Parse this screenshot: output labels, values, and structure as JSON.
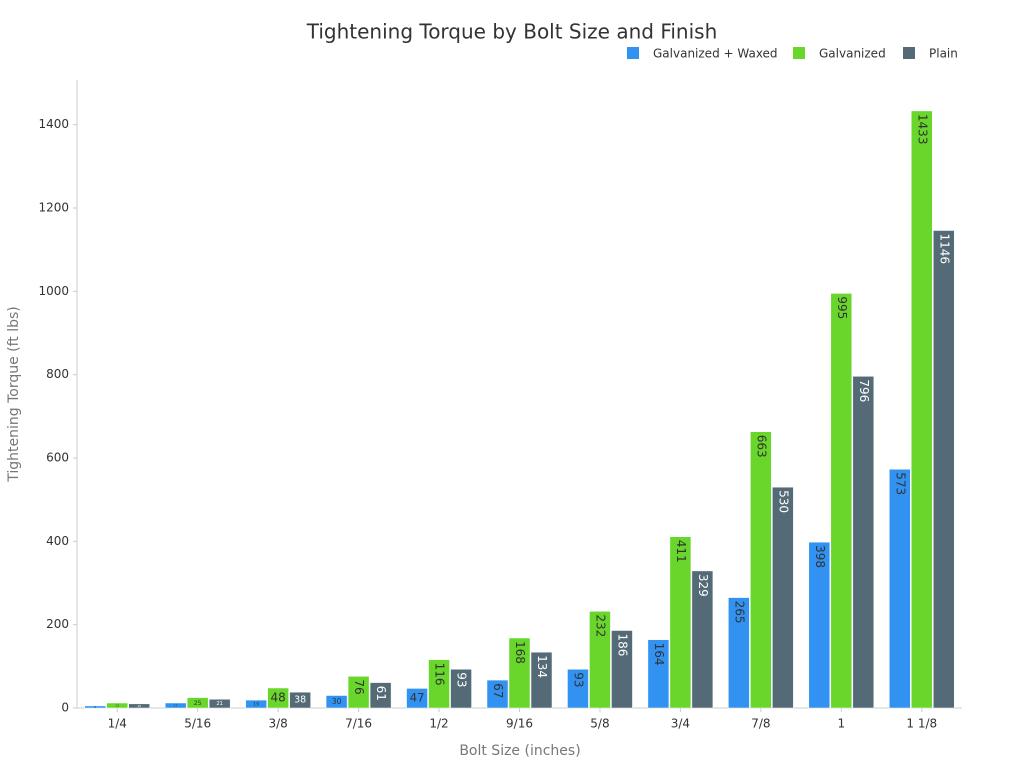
{
  "chart_data": {
    "type": "bar",
    "title": "Tightening Torque by Bolt Size and Finish",
    "x_label": "Bolt Size (inches)",
    "y_label": "Tightening Torque (ft lbs)",
    "categories": [
      "1/4",
      "5/16",
      "3/8",
      "7/16",
      "1/2",
      "9/16",
      "5/8",
      "3/4",
      "7/8",
      "1",
      "1 1/8"
    ],
    "series": [
      {
        "name": "Galvanized + Waxed",
        "color": "#3192f2",
        "values": [
          5,
          12,
          19,
          30,
          47,
          67,
          93,
          164,
          265,
          398,
          573
        ]
      },
      {
        "name": "Galvanized",
        "color": "#68d62a",
        "values": [
          12,
          25,
          48,
          76,
          116,
          168,
          232,
          411,
          663,
          995,
          1433
        ]
      },
      {
        "name": "Plain",
        "color": "#546b77",
        "values": [
          10,
          21,
          38,
          61,
          93,
          134,
          186,
          329,
          530,
          796,
          1146
        ]
      }
    ],
    "ylim": [
      0,
      1500
    ],
    "yticks": [
      0,
      200,
      400,
      600,
      800,
      1000,
      1200,
      1400
    ],
    "legend": "top-right"
  }
}
